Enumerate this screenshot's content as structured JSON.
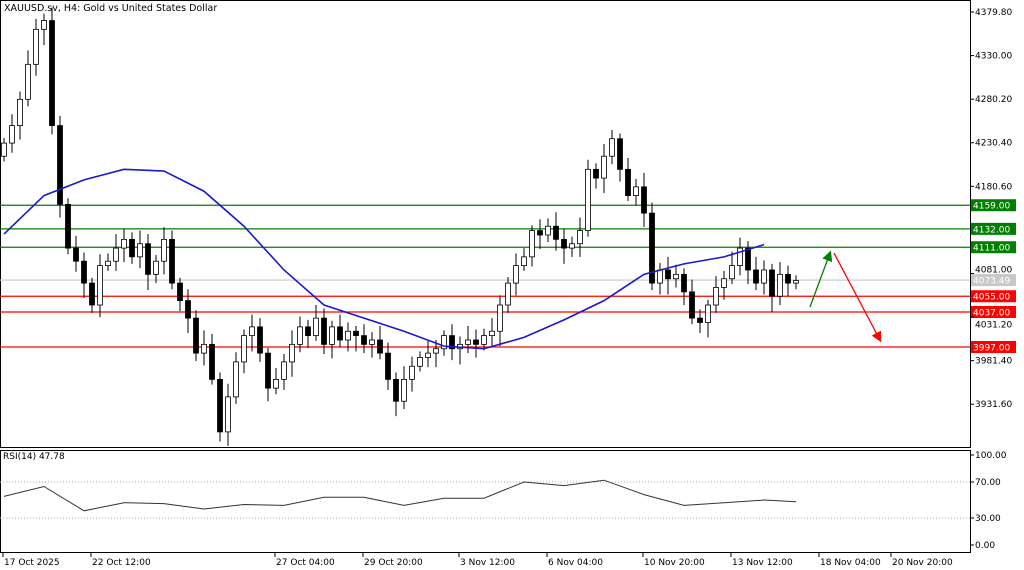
{
  "header": {
    "title": "XAUUSD.sv, H4:  Gold vs United States Dollar"
  },
  "colors": {
    "bull_fill": "#ffffff",
    "bear_fill": "#000000",
    "ma": "#1a1acc",
    "support": "#ff0000",
    "resistance": "#008000",
    "current": "#c8c8c8",
    "rsi": "#333333"
  },
  "chart_data": {
    "type": "candlestick",
    "symbol": "XAUUSD.sv",
    "timeframe": "H4",
    "price_axis_ticks": [
      "4379.80",
      "4330.00",
      "4280.20",
      "4230.40",
      "4180.60",
      "4081.00",
      "4031.20",
      "3981.40",
      "3931.60"
    ],
    "time_axis_ticks": [
      "17 Oct 2025",
      "22 Oct 12:00",
      "27 Oct 04:00",
      "29 Oct 20:00",
      "3 Nov 12:00",
      "6 Nov 04:00",
      "10 Nov 20:00",
      "13 Nov 12:00",
      "18 Nov 04:00",
      "20 Nov 20:00"
    ],
    "closes": [
      4230,
      4250,
      4280,
      4320,
      4360,
      4370,
      4250,
      4160,
      4110,
      4095,
      4070,
      4045,
      4090,
      4095,
      4110,
      4120,
      4100,
      4115,
      4080,
      4095,
      4120,
      4070,
      4050,
      4030,
      3990,
      4000,
      3960,
      3900,
      3940,
      3980,
      4010,
      4020,
      3990,
      3950,
      3960,
      3980,
      4000,
      4020,
      4010,
      4030,
      4000,
      4020,
      4005,
      4015,
      4010,
      4000,
      4005,
      3990,
      3960,
      3935,
      3960,
      3975,
      3985,
      3990,
      3995,
      4010,
      3995,
      4000,
      4005,
      4000,
      4010,
      4015,
      4045,
      4070,
      4090,
      4100,
      4130,
      4125,
      4135,
      4120,
      4110,
      4115,
      4130,
      4200,
      4190,
      4215,
      4235,
      4200,
      4170,
      4180,
      4150,
      4070,
      4085,
      4075,
      4080,
      4060,
      4030,
      4025,
      4045,
      4065,
      4075,
      4090,
      4110,
      4085,
      4070,
      4085,
      4055,
      4080,
      4070,
      4073
    ],
    "moving_average_every_5_bars": [
      4126,
      4170,
      4188,
      4200,
      4198,
      4175,
      4135,
      4085,
      4045,
      4030,
      4015,
      3998,
      3995,
      4008,
      4028,
      4050,
      4080,
      4092,
      4100,
      4114
    ],
    "levels": {
      "resistance": [
        "4159.00",
        "4132.00",
        "4111.00"
      ],
      "support": [
        "4055.00",
        "4037.00",
        "3997.00"
      ],
      "current": "4073.49"
    },
    "rsi": {
      "label": "RSI(14) 47.78",
      "values_every_5_bars": [
        54,
        65,
        38,
        47,
        46,
        40,
        45,
        44,
        53,
        53,
        44,
        52,
        52,
        70,
        66,
        72,
        56,
        44,
        47,
        50,
        48
      ],
      "ticks": [
        "100.00",
        "70.00",
        "30.00",
        "0.00"
      ],
      "levels": [
        70,
        30
      ],
      "ylim": [
        0,
        100
      ]
    },
    "annotations": [
      "green-arrow-up",
      "red-arrow-down"
    ]
  }
}
